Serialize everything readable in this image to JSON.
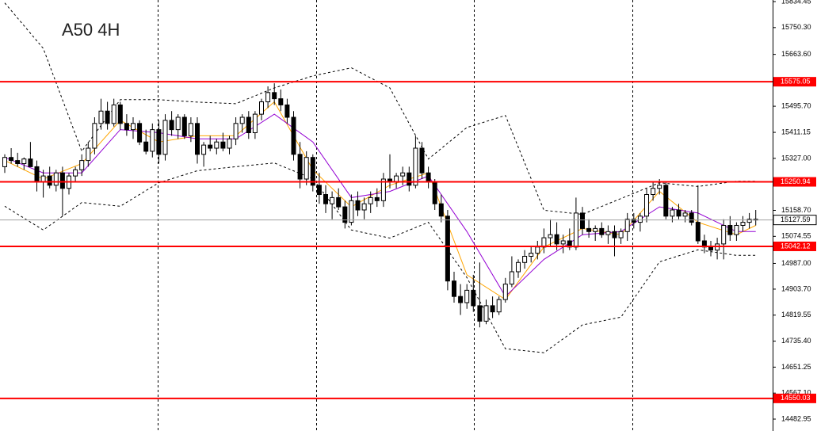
{
  "chart_data": {
    "type": "candlestick",
    "title": "A50 4H",
    "ylim": [
      14444.5,
      15839.6
    ],
    "yticks": [
      15834.45,
      {
        "value": 15750.3,
        "label": "15750.30"
      },
      {
        "value": 15663.6,
        "label": "15663.60"
      },
      {
        "value": 15495.7,
        "label": "15495.70"
      },
      15411.15,
      {
        "value": 15327,
        "label": "15327.00"
      },
      {
        "value": 15158.7,
        "label": "15158.70"
      },
      15074.55,
      {
        "value": 14987,
        "label": "14987.00"
      },
      {
        "value": 14903.7,
        "label": "14903.70"
      },
      14819.55,
      {
        "value": 14735.4,
        "label": "14735.40"
      },
      14651.25,
      {
        "value": 14567.1,
        "label": "14567.10"
      },
      14482.95
    ],
    "levels": [
      15575.05,
      15250.94,
      15042.12,
      14550.03
    ],
    "level_color": "#ff0000",
    "last_price": 15127.59,
    "up_color": "#ffffff",
    "down_color": "#000000",
    "candles": [
      {
        "o": 15300,
        "h": 15340,
        "l": 15280,
        "c": 15330
      },
      {
        "o": 15330,
        "h": 15360,
        "l": 15310,
        "c": 15320
      },
      {
        "o": 15320,
        "h": 15345,
        "l": 15300,
        "c": 15310
      },
      {
        "o": 15310,
        "h": 15330,
        "l": 15290,
        "c": 15325
      },
      {
        "o": 15325,
        "h": 15380,
        "l": 15300,
        "c": 15300
      },
      {
        "o": 15300,
        "h": 15320,
        "l": 15220,
        "c": 15250
      },
      {
        "o": 15250,
        "h": 15290,
        "l": 15200,
        "c": 15270
      },
      {
        "o": 15270,
        "h": 15300,
        "l": 15230,
        "c": 15240
      },
      {
        "o": 15240,
        "h": 15290,
        "l": 15220,
        "c": 15280
      },
      {
        "o": 15280,
        "h": 15300,
        "l": 15140,
        "c": 15230
      },
      {
        "o": 15230,
        "h": 15280,
        "l": 15210,
        "c": 15270
      },
      {
        "o": 15270,
        "h": 15300,
        "l": 15250,
        "c": 15290
      },
      {
        "o": 15290,
        "h": 15340,
        "l": 15270,
        "c": 15320
      },
      {
        "o": 15320,
        "h": 15380,
        "l": 15300,
        "c": 15360
      },
      {
        "o": 15360,
        "h": 15460,
        "l": 15340,
        "c": 15440
      },
      {
        "o": 15440,
        "h": 15520,
        "l": 15420,
        "c": 15480
      },
      {
        "o": 15480,
        "h": 15510,
        "l": 15420,
        "c": 15440
      },
      {
        "o": 15440,
        "h": 15520,
        "l": 15430,
        "c": 15500
      },
      {
        "o": 15500,
        "h": 15510,
        "l": 15420,
        "c": 15440
      },
      {
        "o": 15440,
        "h": 15470,
        "l": 15400,
        "c": 15420
      },
      {
        "o": 15420,
        "h": 15460,
        "l": 15390,
        "c": 15440
      },
      {
        "o": 15440,
        "h": 15450,
        "l": 15370,
        "c": 15380
      },
      {
        "o": 15380,
        "h": 15420,
        "l": 15340,
        "c": 15350
      },
      {
        "o": 15350,
        "h": 15440,
        "l": 15330,
        "c": 15420
      },
      {
        "o": 15420,
        "h": 15450,
        "l": 15310,
        "c": 15340
      },
      {
        "o": 15340,
        "h": 15470,
        "l": 15320,
        "c": 15450
      },
      {
        "o": 15450,
        "h": 15480,
        "l": 15400,
        "c": 15420
      },
      {
        "o": 15420,
        "h": 15470,
        "l": 15390,
        "c": 15460
      },
      {
        "o": 15460,
        "h": 15470,
        "l": 15390,
        "c": 15400
      },
      {
        "o": 15400,
        "h": 15460,
        "l": 15380,
        "c": 15440
      },
      {
        "o": 15440,
        "h": 15460,
        "l": 15310,
        "c": 15340
      },
      {
        "o": 15340,
        "h": 15380,
        "l": 15300,
        "c": 15370
      },
      {
        "o": 15370,
        "h": 15400,
        "l": 15350,
        "c": 15360
      },
      {
        "o": 15360,
        "h": 15390,
        "l": 15340,
        "c": 15380
      },
      {
        "o": 15380,
        "h": 15410,
        "l": 15350,
        "c": 15360
      },
      {
        "o": 15360,
        "h": 15400,
        "l": 15340,
        "c": 15390
      },
      {
        "o": 15390,
        "h": 15460,
        "l": 15370,
        "c": 15440
      },
      {
        "o": 15440,
        "h": 15470,
        "l": 15410,
        "c": 15460
      },
      {
        "o": 15460,
        "h": 15480,
        "l": 15390,
        "c": 15410
      },
      {
        "o": 15410,
        "h": 15480,
        "l": 15390,
        "c": 15470
      },
      {
        "o": 15470,
        "h": 15520,
        "l": 15450,
        "c": 15510
      },
      {
        "o": 15510,
        "h": 15560,
        "l": 15490,
        "c": 15540
      },
      {
        "o": 15540,
        "h": 15570,
        "l": 15500,
        "c": 15520
      },
      {
        "o": 15520,
        "h": 15550,
        "l": 15480,
        "c": 15500
      },
      {
        "o": 15500,
        "h": 15520,
        "l": 15440,
        "c": 15460
      },
      {
        "o": 15460,
        "h": 15480,
        "l": 15320,
        "c": 15340
      },
      {
        "o": 15340,
        "h": 15380,
        "l": 15230,
        "c": 15260
      },
      {
        "o": 15260,
        "h": 15350,
        "l": 15240,
        "c": 15330
      },
      {
        "o": 15330,
        "h": 15340,
        "l": 15220,
        "c": 15240
      },
      {
        "o": 15240,
        "h": 15280,
        "l": 15180,
        "c": 15210
      },
      {
        "o": 15210,
        "h": 15240,
        "l": 15150,
        "c": 15180
      },
      {
        "o": 15180,
        "h": 15220,
        "l": 15130,
        "c": 15200
      },
      {
        "o": 15200,
        "h": 15230,
        "l": 15160,
        "c": 15170
      },
      {
        "o": 15170,
        "h": 15190,
        "l": 15100,
        "c": 15120
      },
      {
        "o": 15120,
        "h": 15210,
        "l": 15110,
        "c": 15190
      },
      {
        "o": 15190,
        "h": 15220,
        "l": 15140,
        "c": 15160
      },
      {
        "o": 15160,
        "h": 15200,
        "l": 15130,
        "c": 15180
      },
      {
        "o": 15180,
        "h": 15220,
        "l": 15150,
        "c": 15200
      },
      {
        "o": 15200,
        "h": 15230,
        "l": 15170,
        "c": 15190
      },
      {
        "o": 15190,
        "h": 15280,
        "l": 15170,
        "c": 15260
      },
      {
        "o": 15260,
        "h": 15340,
        "l": 15230,
        "c": 15250
      },
      {
        "o": 15250,
        "h": 15280,
        "l": 15230,
        "c": 15270
      },
      {
        "o": 15270,
        "h": 15300,
        "l": 15240,
        "c": 15280
      },
      {
        "o": 15280,
        "h": 15300,
        "l": 15220,
        "c": 15240
      },
      {
        "o": 15240,
        "h": 15400,
        "l": 15230,
        "c": 15360
      },
      {
        "o": 15360,
        "h": 15380,
        "l": 15260,
        "c": 15280
      },
      {
        "o": 15280,
        "h": 15300,
        "l": 15230,
        "c": 15250
      },
      {
        "o": 15250,
        "h": 15260,
        "l": 15160,
        "c": 15180
      },
      {
        "o": 15180,
        "h": 15210,
        "l": 15120,
        "c": 15140
      },
      {
        "o": 15140,
        "h": 15160,
        "l": 14900,
        "c": 14930
      },
      {
        "o": 14930,
        "h": 14960,
        "l": 14860,
        "c": 14880
      },
      {
        "o": 14880,
        "h": 14920,
        "l": 14820,
        "c": 14860
      },
      {
        "o": 14860,
        "h": 14920,
        "l": 14840,
        "c": 14900
      },
      {
        "o": 14900,
        "h": 14950,
        "l": 14830,
        "c": 14850
      },
      {
        "o": 14850,
        "h": 14990,
        "l": 14780,
        "c": 14800
      },
      {
        "o": 14800,
        "h": 14870,
        "l": 14790,
        "c": 14850
      },
      {
        "o": 14850,
        "h": 14880,
        "l": 14810,
        "c": 14830
      },
      {
        "o": 14830,
        "h": 14880,
        "l": 14820,
        "c": 14870
      },
      {
        "o": 14870,
        "h": 14940,
        "l": 14860,
        "c": 14920
      },
      {
        "o": 14920,
        "h": 15010,
        "l": 14910,
        "c": 14960
      },
      {
        "o": 14960,
        "h": 15000,
        "l": 14940,
        "c": 14990
      },
      {
        "o": 14990,
        "h": 15030,
        "l": 14970,
        "c": 15010
      },
      {
        "o": 15010,
        "h": 15040,
        "l": 14990,
        "c": 15020
      },
      {
        "o": 15020,
        "h": 15060,
        "l": 15000,
        "c": 15040
      },
      {
        "o": 15040,
        "h": 15100,
        "l": 15020,
        "c": 15070
      },
      {
        "o": 15070,
        "h": 15130,
        "l": 15040,
        "c": 15080
      },
      {
        "o": 15080,
        "h": 15120,
        "l": 15030,
        "c": 15050
      },
      {
        "o": 15050,
        "h": 15080,
        "l": 15020,
        "c": 15060
      },
      {
        "o": 15060,
        "h": 15100,
        "l": 15030,
        "c": 15040
      },
      {
        "o": 15040,
        "h": 15200,
        "l": 15030,
        "c": 15150
      },
      {
        "o": 15150,
        "h": 15170,
        "l": 15080,
        "c": 15100
      },
      {
        "o": 15100,
        "h": 15130,
        "l": 15070,
        "c": 15090
      },
      {
        "o": 15090,
        "h": 15110,
        "l": 15060,
        "c": 15100
      },
      {
        "o": 15100,
        "h": 15120,
        "l": 15070,
        "c": 15080
      },
      {
        "o": 15080,
        "h": 15110,
        "l": 15050,
        "c": 15090
      },
      {
        "o": 15090,
        "h": 15110,
        "l": 15010,
        "c": 15070
      },
      {
        "o": 15070,
        "h": 15100,
        "l": 15050,
        "c": 15090
      },
      {
        "o": 15090,
        "h": 15150,
        "l": 15060,
        "c": 15130
      },
      {
        "o": 15130,
        "h": 15150,
        "l": 15100,
        "c": 15120
      },
      {
        "o": 15120,
        "h": 15150,
        "l": 15090,
        "c": 15140
      },
      {
        "o": 15140,
        "h": 15230,
        "l": 15120,
        "c": 15210
      },
      {
        "o": 15210,
        "h": 15250,
        "l": 15190,
        "c": 15230
      },
      {
        "o": 15230,
        "h": 15260,
        "l": 15210,
        "c": 15240
      },
      {
        "o": 15240,
        "h": 15250,
        "l": 15130,
        "c": 15140
      },
      {
        "o": 15140,
        "h": 15170,
        "l": 15120,
        "c": 15160
      },
      {
        "o": 15160,
        "h": 15180,
        "l": 15130,
        "c": 15140
      },
      {
        "o": 15140,
        "h": 15160,
        "l": 15120,
        "c": 15150
      },
      {
        "o": 15150,
        "h": 15160,
        "l": 15110,
        "c": 15120
      },
      {
        "o": 15120,
        "h": 15240,
        "l": 15050,
        "c": 15060
      },
      {
        "o": 15060,
        "h": 15080,
        "l": 15020,
        "c": 15040
      },
      {
        "o": 15040,
        "h": 15060,
        "l": 15010,
        "c": 15030
      },
      {
        "o": 15030,
        "h": 15070,
        "l": 15000,
        "c": 15050
      },
      {
        "o": 15050,
        "h": 15130,
        "l": 15000,
        "c": 15110
      },
      {
        "o": 15110,
        "h": 15140,
        "l": 15060,
        "c": 15080
      },
      {
        "o": 15080,
        "h": 15120,
        "l": 15060,
        "c": 15110
      },
      {
        "o": 15110,
        "h": 15140,
        "l": 15090,
        "c": 15120
      },
      {
        "o": 15120,
        "h": 15150,
        "l": 15100,
        "c": 15130
      },
      {
        "o": 15130,
        "h": 15160,
        "l": 15110,
        "c": 15128
      }
    ],
    "lines": [
      {
        "color": "#000000",
        "dashed": true,
        "x": [
          0,
          6,
          12,
          18,
          24,
          30,
          36,
          42,
          48,
          54,
          60,
          66,
          72,
          78,
          84,
          90,
          96,
          102,
          108,
          114,
          117
        ],
        "values": [
          15830,
          15683,
          15350,
          15517,
          15517,
          15509,
          15504,
          15555,
          15594,
          15620,
          15555,
          15325,
          15427,
          15466,
          15159,
          15146,
          15197,
          15248,
          15236,
          15253,
          15253
        ]
      },
      {
        "color": "#000000",
        "dashed": true,
        "x": [
          0,
          6,
          12,
          18,
          24,
          30,
          36,
          42,
          48,
          54,
          60,
          66,
          72,
          78,
          84,
          90,
          96,
          102,
          108,
          114,
          117
        ],
        "values": [
          15172,
          15095,
          15184,
          15172,
          15248,
          15287,
          15300,
          15312,
          15261,
          15095,
          15069,
          15120,
          14941,
          14711,
          14698,
          14788,
          14813,
          14992,
          15031,
          15013,
          15013
        ]
      },
      {
        "color": "#ffa500",
        "dashed": false,
        "x": [
          0,
          6,
          12,
          18,
          24,
          30,
          36,
          42,
          48,
          54,
          60,
          66,
          72,
          78,
          84,
          90,
          96,
          102,
          108,
          114,
          117
        ],
        "values": [
          15320,
          15260,
          15310,
          15450,
          15380,
          15400,
          15400,
          15510,
          15290,
          15170,
          15240,
          15280,
          14950,
          14870,
          15040,
          15100,
          15080,
          15220,
          15120,
          15080,
          15110
        ]
      },
      {
        "color": "#9400d3",
        "dashed": false,
        "x": [
          0,
          6,
          12,
          18,
          24,
          30,
          36,
          42,
          48,
          54,
          60,
          66,
          72,
          78,
          84,
          90,
          96,
          102,
          108,
          114,
          117
        ],
        "values": [
          15330,
          15280,
          15280,
          15420,
          15410,
          15390,
          15390,
          15470,
          15380,
          15200,
          15220,
          15270,
          15090,
          14880,
          15000,
          15080,
          15090,
          15170,
          15150,
          15090,
          15090
        ]
      }
    ]
  }
}
